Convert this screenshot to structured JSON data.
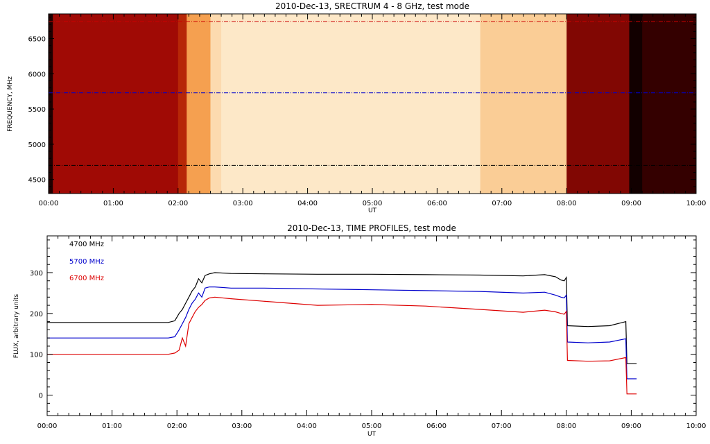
{
  "chart_data": [
    {
      "type": "heatmap",
      "title": "2010-Dec-13,  SRECTRUM 4 - 8 GHz,  test mode",
      "xlabel": "UT",
      "ylabel": "FREQUENCY, MHz",
      "xlim": [
        0,
        600
      ],
      "ylim": [
        4300,
        6850
      ],
      "x_ticks": [
        "00:00",
        "01:00",
        "02:00",
        "03:00",
        "04:00",
        "05:00",
        "06:00",
        "07:00",
        "08:00",
        "09:00",
        "10:00"
      ],
      "y_ticks": [
        4500,
        5000,
        5500,
        6000,
        6500
      ],
      "colormap": "red-temperature",
      "reference_lines": [
        {
          "freq": 4700,
          "color": "#000000"
        },
        {
          "freq": 5730,
          "color": "#0000cc"
        },
        {
          "freq": 6740,
          "color": "#cc0000"
        }
      ],
      "time_segments": [
        {
          "t0": 0,
          "t1": 4,
          "level": 0.05
        },
        {
          "t0": 4,
          "t1": 120,
          "level": 0.38
        },
        {
          "t0": 120,
          "t1": 128,
          "level": 0.45
        },
        {
          "t0": 128,
          "t1": 150,
          "level": 0.72
        },
        {
          "t0": 150,
          "t1": 160,
          "level": 0.9
        },
        {
          "t0": 160,
          "t1": 400,
          "level": 0.95
        },
        {
          "t0": 400,
          "t1": 480,
          "level": 0.85
        },
        {
          "t0": 480,
          "t1": 538,
          "level": 0.3
        },
        {
          "t0": 538,
          "t1": 550,
          "level": 0.02
        },
        {
          "t0": 550,
          "t1": 600,
          "level": 0.1
        }
      ]
    },
    {
      "type": "line",
      "title": "2010-Dec-13,  TIME PROFILES,  test mode",
      "xlabel": "UT",
      "ylabel": "FLUX, arbitrary units",
      "xlim": [
        0,
        600
      ],
      "ylim": [
        -50,
        390
      ],
      "x_ticks": [
        "00:00",
        "01:00",
        "02:00",
        "03:00",
        "04:00",
        "05:00",
        "06:00",
        "07:00",
        "08:00",
        "09:00",
        "10:00"
      ],
      "y_ticks": [
        0,
        100,
        200,
        300
      ],
      "legend_position": "top-left",
      "series": [
        {
          "name": "4700 MHz",
          "color": "#000000",
          "x": [
            0,
            112,
            118,
            122,
            125,
            128,
            131,
            134,
            137,
            140,
            143,
            146,
            150,
            155,
            170,
            200,
            250,
            300,
            350,
            400,
            440,
            460,
            470,
            475,
            478,
            480,
            481,
            500,
            520,
            535,
            536,
            540,
            545
          ],
          "y": [
            178,
            178,
            182,
            200,
            210,
            225,
            240,
            255,
            265,
            285,
            275,
            293,
            297,
            300,
            298,
            297,
            296,
            296,
            295,
            294,
            292,
            295,
            290,
            282,
            280,
            288,
            170,
            168,
            170,
            180,
            77,
            77,
            77
          ]
        },
        {
          "name": "5700 MHz",
          "color": "#0000cc",
          "x": [
            0,
            112,
            118,
            122,
            125,
            128,
            131,
            134,
            137,
            140,
            143,
            146,
            150,
            155,
            170,
            200,
            250,
            300,
            350,
            400,
            440,
            460,
            470,
            475,
            478,
            480,
            481,
            500,
            520,
            535,
            536,
            540,
            545
          ],
          "y": [
            140,
            140,
            143,
            160,
            175,
            190,
            210,
            225,
            235,
            250,
            240,
            262,
            265,
            265,
            262,
            262,
            260,
            258,
            256,
            254,
            250,
            252,
            245,
            240,
            238,
            245,
            130,
            128,
            130,
            138,
            40,
            40,
            40
          ]
        },
        {
          "name": "6700 MHz",
          "color": "#dd0000",
          "x": [
            0,
            112,
            118,
            122,
            125,
            128,
            131,
            134,
            137,
            140,
            143,
            146,
            150,
            155,
            170,
            200,
            250,
            300,
            350,
            400,
            440,
            460,
            470,
            475,
            478,
            480,
            481,
            500,
            520,
            535,
            536,
            540,
            545
          ],
          "y": [
            100,
            100,
            103,
            110,
            140,
            120,
            175,
            190,
            205,
            215,
            222,
            232,
            238,
            240,
            236,
            230,
            220,
            222,
            218,
            210,
            203,
            208,
            204,
            200,
            198,
            205,
            85,
            83,
            84,
            92,
            3,
            3,
            3
          ]
        }
      ]
    }
  ]
}
